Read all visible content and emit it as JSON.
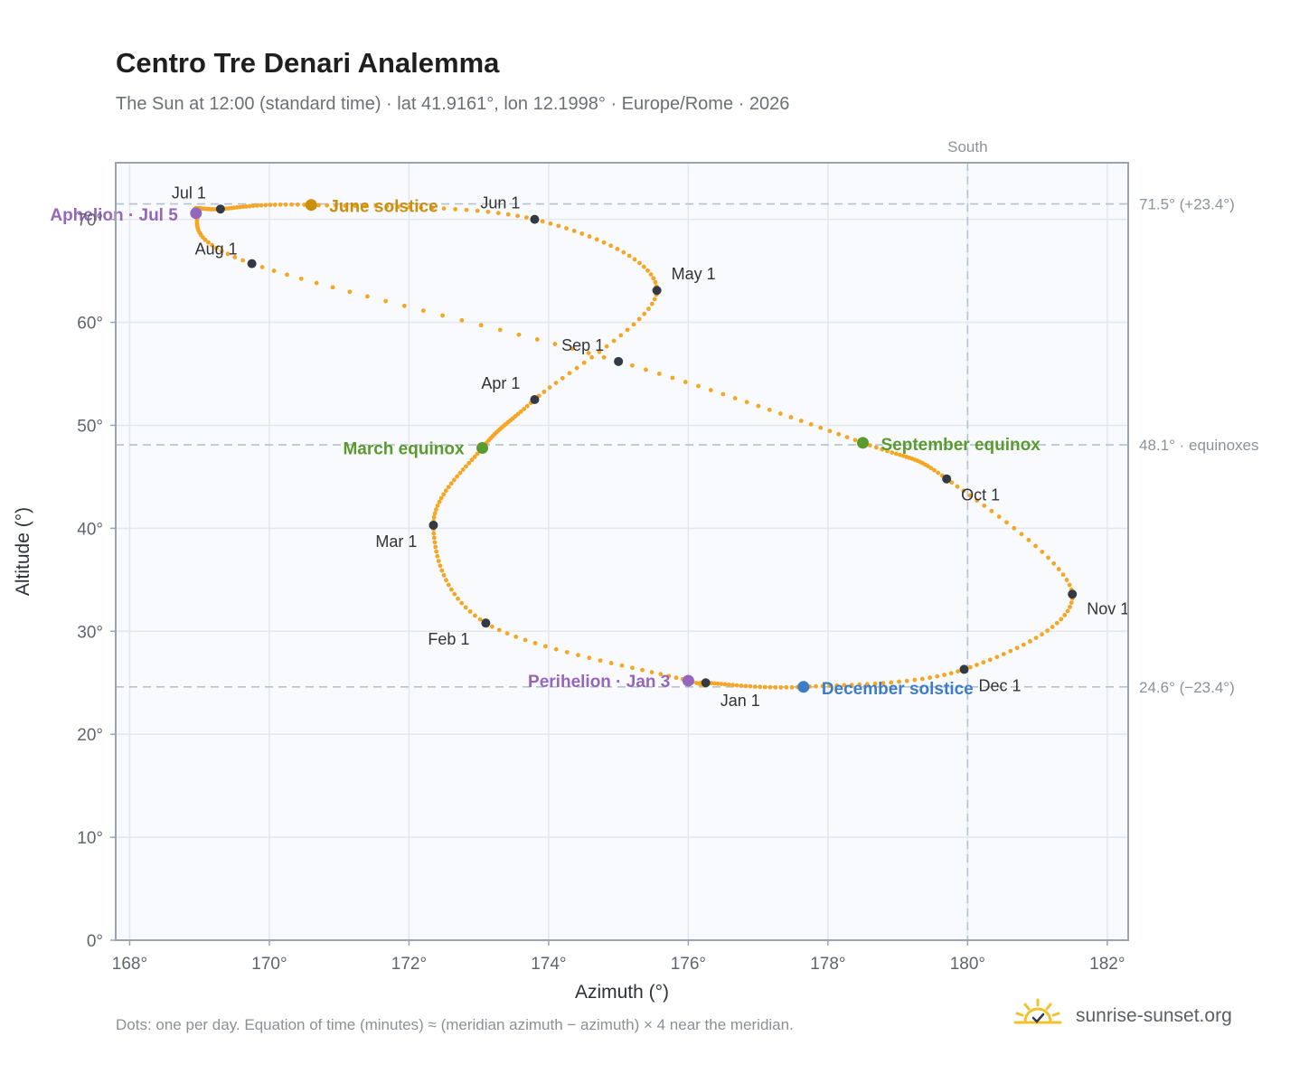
{
  "header": {
    "title": "Centro Tre Denari Analemma",
    "subtitle": "The Sun at 12:00 (standard time) · lat 41.9161°, lon 12.1998° · Europe/Rome · 2026"
  },
  "footer": {
    "note": "Dots: one per day. Equation of time (minutes) ≈ (meridian azimuth − azimuth) × 4 near the meridian.",
    "brand": "sunrise-sunset.org"
  },
  "colors": {
    "path": "#f5a623",
    "month_dot": "#333a44",
    "solstice_june": "#c8900e",
    "solstice_december": "#3d7cc9",
    "equinox": "#5a9a2f",
    "apsis": "#9467bd",
    "plot_bg": "#f8fafd",
    "grid": "#e3e8ee",
    "reference_line": "#b6c2cf"
  },
  "chart_data": {
    "type": "scatter",
    "xlabel": "Azimuth (°)",
    "ylabel": "Altitude (°)",
    "xlim": [
      167.8,
      182.3
    ],
    "ylim": [
      0,
      75.5
    ],
    "x_ticks": [
      168,
      170,
      172,
      174,
      176,
      178,
      180,
      182
    ],
    "x_tick_labels": [
      "168°",
      "170°",
      "172°",
      "174°",
      "176°",
      "178°",
      "180°",
      "182°"
    ],
    "y_ticks": [
      0,
      10,
      20,
      30,
      40,
      50,
      60,
      70
    ],
    "y_tick_labels": [
      "0°",
      "10°",
      "20°",
      "30°",
      "40°",
      "50°",
      "60°",
      "70°"
    ],
    "grid": true,
    "reference_lines": {
      "vertical": [
        {
          "x": 180,
          "label": "South"
        }
      ],
      "horizontal": [
        {
          "y": 71.5,
          "label": "71.5° (+23.4°)"
        },
        {
          "y": 48.1,
          "label": "48.1° · equinoxes"
        },
        {
          "y": 24.6,
          "label": "24.6° (−23.4°)"
        }
      ]
    },
    "series": [
      {
        "points": [
          {
            "date": "Jan 1",
            "az": 176.25,
            "alt": 25.0
          },
          {
            "date": "Jan 3",
            "az": 176.0,
            "alt": 25.2
          },
          {
            "date": "Feb 1",
            "az": 173.1,
            "alt": 30.8
          },
          {
            "date": "Mar 1",
            "az": 172.35,
            "alt": 40.3
          },
          {
            "date": "Mar 20",
            "az": 173.05,
            "alt": 47.8
          },
          {
            "date": "Apr 1",
            "az": 173.8,
            "alt": 52.5
          },
          {
            "date": "May 1",
            "az": 175.55,
            "alt": 63.1
          },
          {
            "date": "Jun 1",
            "az": 173.8,
            "alt": 70.0
          },
          {
            "date": "Jun 21",
            "az": 170.6,
            "alt": 71.4
          },
          {
            "date": "Jul 1",
            "az": 169.3,
            "alt": 71.0
          },
          {
            "date": "Jul 5",
            "az": 168.95,
            "alt": 70.6
          },
          {
            "date": "Aug 1",
            "az": 169.75,
            "alt": 65.7
          },
          {
            "date": "Sep 1",
            "az": 175.0,
            "alt": 56.2
          },
          {
            "date": "Sep 23",
            "az": 178.5,
            "alt": 48.3
          },
          {
            "date": "Oct 1",
            "az": 179.7,
            "alt": 44.8
          },
          {
            "date": "Nov 1",
            "az": 181.5,
            "alt": 33.6
          },
          {
            "date": "Dec 1",
            "az": 179.95,
            "alt": 26.3
          },
          {
            "date": "Dec 21",
            "az": 177.65,
            "alt": 24.6
          }
        ]
      }
    ],
    "month_markers": [
      {
        "label": "Jan 1",
        "az": 176.25,
        "alt": 25.0
      },
      {
        "label": "Feb 1",
        "az": 173.1,
        "alt": 30.8
      },
      {
        "label": "Mar 1",
        "az": 172.35,
        "alt": 40.3
      },
      {
        "label": "Apr 1",
        "az": 173.8,
        "alt": 52.5
      },
      {
        "label": "May 1",
        "az": 175.55,
        "alt": 63.1
      },
      {
        "label": "Jun 1",
        "az": 173.8,
        "alt": 70.0
      },
      {
        "label": "Jul 1",
        "az": 169.3,
        "alt": 71.0
      },
      {
        "label": "Aug 1",
        "az": 169.75,
        "alt": 65.7
      },
      {
        "label": "Sep 1",
        "az": 175.0,
        "alt": 56.2
      },
      {
        "label": "Oct 1",
        "az": 179.7,
        "alt": 44.8
      },
      {
        "label": "Nov 1",
        "az": 181.5,
        "alt": 33.6
      },
      {
        "label": "Dec 1",
        "az": 179.95,
        "alt": 26.3
      }
    ],
    "events": [
      {
        "label": "June solstice",
        "az": 170.6,
        "alt": 71.4,
        "color": "#c8900e"
      },
      {
        "label": "December solstice",
        "az": 177.65,
        "alt": 24.6,
        "color": "#3d7cc9"
      },
      {
        "label": "March equinox",
        "az": 173.05,
        "alt": 47.8,
        "color": "#5a9a2f"
      },
      {
        "label": "September equinox",
        "az": 178.5,
        "alt": 48.3,
        "color": "#5a9a2f"
      },
      {
        "label": "Aphelion · Jul 5",
        "az": 168.95,
        "alt": 70.6,
        "color": "#9467bd"
      },
      {
        "label": "Perihelion · Jan 3",
        "az": 176.0,
        "alt": 25.2,
        "color": "#9467bd"
      }
    ]
  }
}
